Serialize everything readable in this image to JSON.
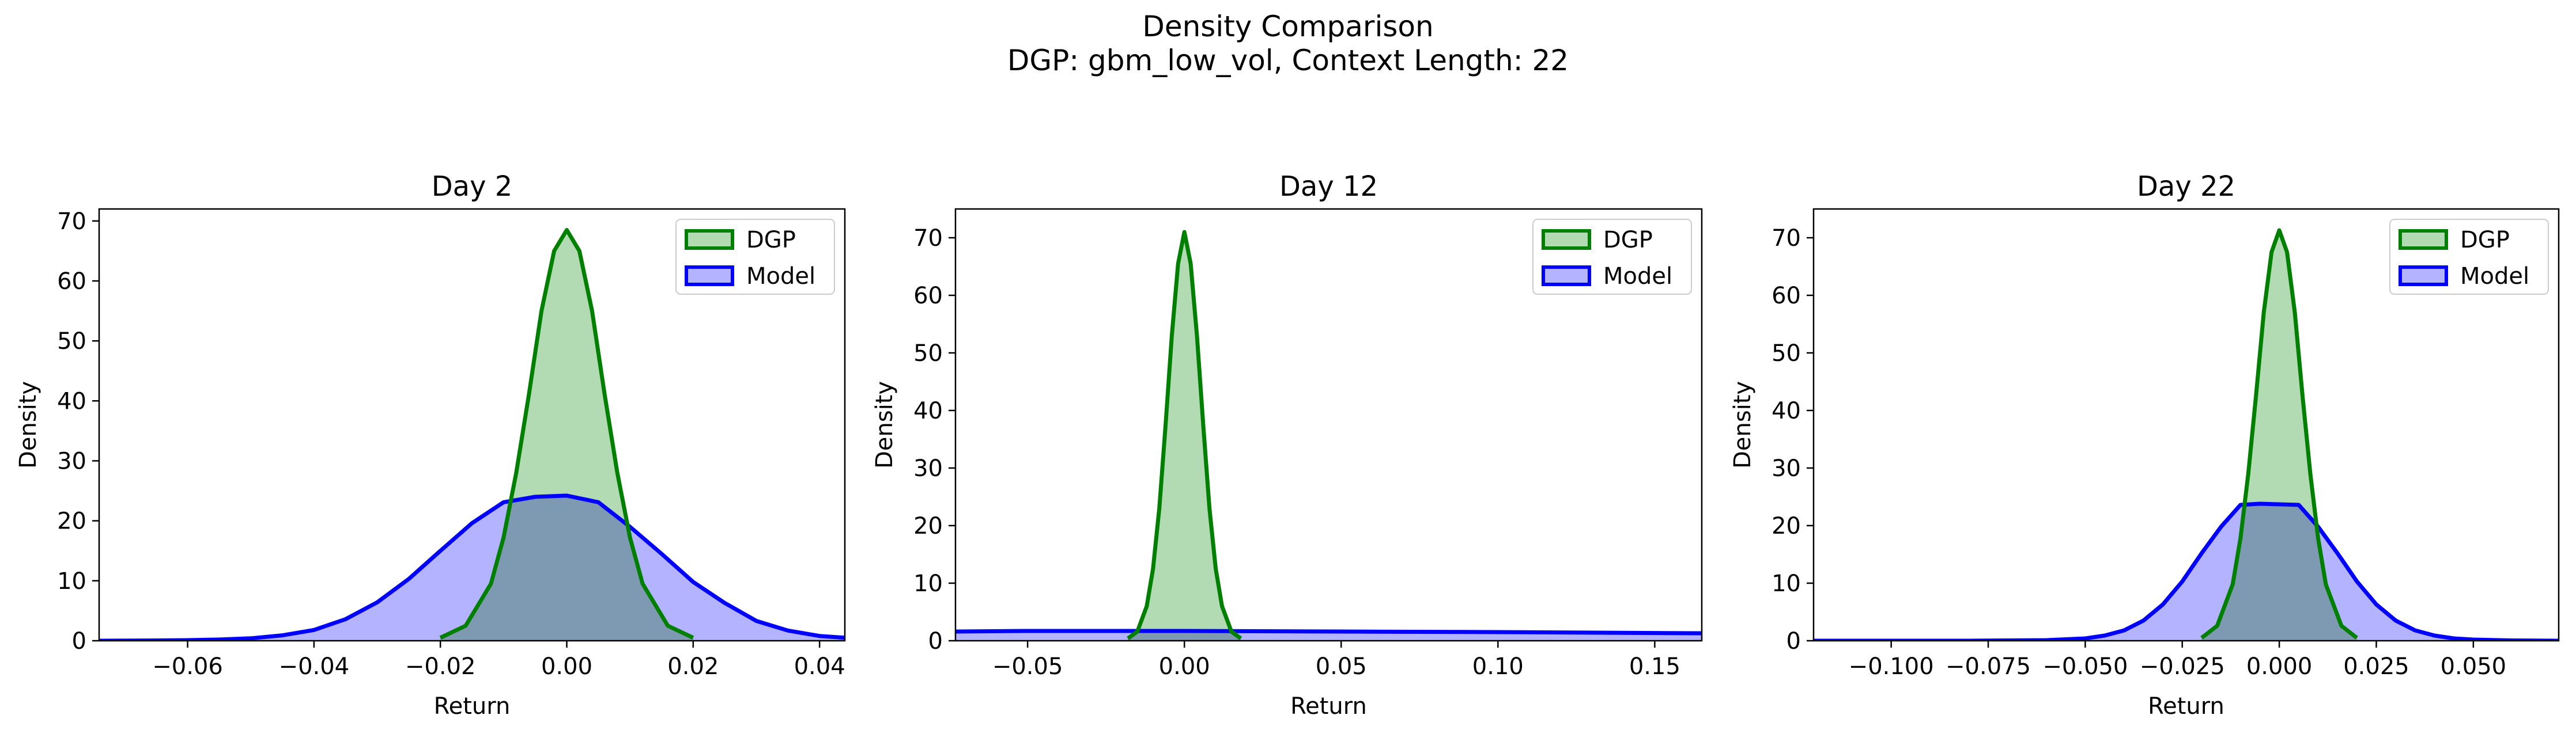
{
  "figure": {
    "title_line1": "Density Comparison",
    "title_line2": "DGP: gbm_low_vol, Context Length: 22"
  },
  "colors": {
    "dgp_line": "#008000",
    "dgp_fill": "#B3DBB3",
    "model_line": "#0000FF",
    "model_fill": "#B3B3FF",
    "overlap_fill": "#7D98CC",
    "axis": "#000000"
  },
  "chart_data": [
    {
      "type": "area",
      "title": "Day 2",
      "xlabel": "Return",
      "ylabel": "Density",
      "xlim": [
        -0.074,
        0.044
      ],
      "ylim": [
        0,
        72
      ],
      "xticks": [
        -0.06,
        -0.04,
        -0.02,
        0.0,
        0.02,
        0.04
      ],
      "xtick_labels": [
        "−0.06",
        "−0.04",
        "−0.02",
        "0.00",
        "0.02",
        "0.04"
      ],
      "yticks": [
        0,
        10,
        20,
        30,
        40,
        50,
        60,
        70
      ],
      "ytick_labels": [
        "0",
        "10",
        "20",
        "30",
        "40",
        "50",
        "60",
        "70"
      ],
      "legend": {
        "position": "top-right",
        "entries": [
          "DGP",
          "Model"
        ]
      },
      "grid": false,
      "series": [
        {
          "name": "DGP",
          "x": [
            -0.02,
            -0.016,
            -0.012,
            -0.01,
            -0.008,
            -0.006,
            -0.004,
            -0.002,
            0.0,
            0.002,
            0.004,
            0.006,
            0.008,
            0.01,
            0.012,
            0.016,
            0.02
          ],
          "y": [
            0.5,
            2.5,
            9.5,
            17.2,
            28.0,
            41.0,
            55.0,
            65.0,
            68.5,
            65.0,
            55.0,
            41.0,
            28.0,
            17.2,
            9.5,
            2.5,
            0.5
          ]
        },
        {
          "name": "Model",
          "x": [
            -0.074,
            -0.065,
            -0.06,
            -0.055,
            -0.05,
            -0.045,
            -0.04,
            -0.035,
            -0.03,
            -0.025,
            -0.02,
            -0.015,
            -0.01,
            -0.005,
            0.0,
            0.005,
            0.01,
            0.015,
            0.02,
            0.025,
            0.03,
            0.035,
            0.04,
            0.044
          ],
          "y": [
            0.0,
            0.05,
            0.1,
            0.2,
            0.4,
            0.9,
            1.8,
            3.6,
            6.4,
            10.3,
            15.0,
            19.6,
            23.1,
            24.0,
            24.2,
            23.1,
            19.0,
            14.5,
            9.8,
            6.3,
            3.3,
            1.7,
            0.8,
            0.5
          ]
        }
      ]
    },
    {
      "type": "area",
      "title": "Day 12",
      "xlabel": "Return",
      "ylabel": "Density",
      "xlim": [
        -0.073,
        0.165
      ],
      "ylim": [
        0,
        75
      ],
      "xticks": [
        -0.05,
        0.0,
        0.05,
        0.1,
        0.15
      ],
      "xtick_labels": [
        "−0.05",
        "0.00",
        "0.05",
        "0.10",
        "0.15"
      ],
      "yticks": [
        0,
        10,
        20,
        30,
        40,
        50,
        60,
        70
      ],
      "ytick_labels": [
        "0",
        "10",
        "20",
        "30",
        "40",
        "50",
        "60",
        "70"
      ],
      "legend": {
        "position": "top-right",
        "entries": [
          "DGP",
          "Model"
        ]
      },
      "grid": false,
      "series": [
        {
          "name": "DGP",
          "x": [
            -0.018,
            -0.015,
            -0.012,
            -0.01,
            -0.008,
            -0.006,
            -0.004,
            -0.002,
            0.0,
            0.002,
            0.004,
            0.006,
            0.008,
            0.01,
            0.012,
            0.015,
            0.018
          ],
          "y": [
            0.4,
            1.6,
            6.0,
            12.5,
            23.0,
            37.5,
            53.0,
            65.5,
            71.0,
            65.5,
            53.0,
            37.5,
            23.0,
            12.5,
            6.0,
            1.6,
            0.4
          ]
        },
        {
          "name": "Model",
          "x": [
            -0.073,
            -0.05,
            0.0,
            0.05,
            0.1,
            0.165
          ],
          "y": [
            1.6,
            1.7,
            1.7,
            1.6,
            1.5,
            1.3
          ]
        }
      ]
    },
    {
      "type": "area",
      "title": "Day 22",
      "xlabel": "Return",
      "ylabel": "Density",
      "xlim": [
        -0.12,
        0.072
      ],
      "ylim": [
        0,
        75
      ],
      "xticks": [
        -0.1,
        -0.075,
        -0.05,
        -0.025,
        0.0,
        0.025,
        0.05
      ],
      "xtick_labels": [
        "−0.100",
        "−0.075",
        "−0.050",
        "−0.025",
        "0.000",
        "0.025",
        "0.050"
      ],
      "yticks": [
        0,
        10,
        20,
        30,
        40,
        50,
        60,
        70
      ],
      "ytick_labels": [
        "0",
        "10",
        "20",
        "30",
        "40",
        "50",
        "60",
        "70"
      ],
      "legend": {
        "position": "top-right",
        "entries": [
          "DGP",
          "Model"
        ]
      },
      "grid": false,
      "series": [
        {
          "name": "DGP",
          "x": [
            -0.02,
            -0.016,
            -0.012,
            -0.01,
            -0.008,
            -0.006,
            -0.004,
            -0.002,
            0.0,
            0.002,
            0.004,
            0.006,
            0.008,
            0.01,
            0.012,
            0.016,
            0.02
          ],
          "y": [
            0.5,
            2.6,
            9.8,
            17.8,
            29.0,
            42.5,
            57.0,
            67.5,
            71.3,
            67.5,
            57.0,
            42.5,
            29.0,
            17.8,
            9.8,
            2.6,
            0.5
          ]
        },
        {
          "name": "Model",
          "x": [
            -0.12,
            -0.08,
            -0.06,
            -0.05,
            -0.045,
            -0.04,
            -0.035,
            -0.03,
            -0.025,
            -0.02,
            -0.015,
            -0.01,
            -0.005,
            0.0,
            0.005,
            0.01,
            0.015,
            0.02,
            0.025,
            0.03,
            0.035,
            0.04,
            0.045,
            0.05,
            0.06,
            0.072
          ],
          "y": [
            0.0,
            0.0,
            0.1,
            0.4,
            0.9,
            1.8,
            3.5,
            6.3,
            10.3,
            15.2,
            19.8,
            23.6,
            23.8,
            23.7,
            23.6,
            19.8,
            15.2,
            10.3,
            6.3,
            3.5,
            1.8,
            0.9,
            0.4,
            0.2,
            0.05,
            0.0
          ]
        }
      ]
    }
  ]
}
